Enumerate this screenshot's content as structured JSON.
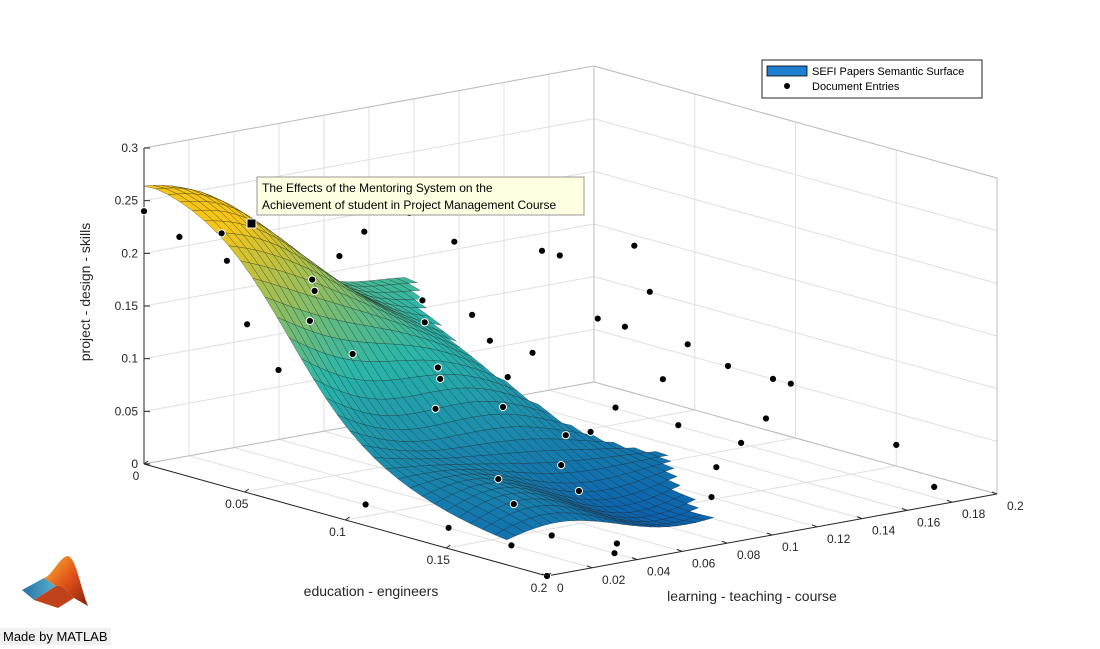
{
  "chart_data": {
    "type": "scatter",
    "subtype": "3d-surface-with-points",
    "title": "",
    "xlabel": "learning - teaching - course",
    "ylabel": "education - engineers",
    "zlabel": "project - design - skills",
    "xlim": [
      0,
      0.2
    ],
    "ylim": [
      0,
      0.2
    ],
    "zlim": [
      0,
      0.3
    ],
    "x_ticks": [
      "0",
      "0.02",
      "0.04",
      "0.06",
      "0.08",
      "0.1",
      "0.12",
      "0.14",
      "0.16",
      "0.18",
      "0.2"
    ],
    "y_ticks": [
      "0",
      "0.05",
      "0.1",
      "0.15",
      "0.2"
    ],
    "z_ticks": [
      "0",
      "0.05",
      "0.1",
      "0.15",
      "0.2",
      "0.25",
      "0.3"
    ],
    "grid": true,
    "colormap": "parula",
    "legend": {
      "location": "top-right",
      "entries": [
        "SEFI Papers Semantic Surface",
        "Document Entries"
      ]
    },
    "series": [
      {
        "name": "Document Entries",
        "points": [
          [
            0.0,
            0.0,
            0.24
          ],
          [
            0.005,
            0.012,
            0.22
          ],
          [
            0.01,
            0.03,
            0.205
          ],
          [
            0.03,
            0.005,
            0.21
          ],
          [
            0.03,
            0.05,
            0.19
          ],
          [
            0.02,
            0.06,
            0.16
          ],
          [
            0.04,
            0.04,
            0.17
          ],
          [
            0.06,
            0.03,
            0.19
          ],
          [
            0.08,
            0.02,
            0.2
          ],
          [
            0.1,
            0.02,
            0.21
          ],
          [
            0.12,
            0.02,
            0.175
          ],
          [
            0.14,
            0.05,
            0.17
          ],
          [
            0.01,
            0.04,
            0.15
          ],
          [
            0.03,
            0.07,
            0.13
          ],
          [
            0.015,
            0.05,
            0.11
          ],
          [
            0.05,
            0.09,
            0.12
          ],
          [
            0.07,
            0.06,
            0.16
          ],
          [
            0.1,
            0.06,
            0.11
          ],
          [
            0.13,
            0.08,
            0.13
          ],
          [
            0.16,
            0.06,
            0.1
          ],
          [
            0.2,
            0.02,
            0.14
          ],
          [
            0.17,
            0.1,
            0.08
          ],
          [
            0.18,
            0.12,
            0.07
          ],
          [
            0.2,
            0.15,
            0.02
          ],
          [
            0.19,
            0.18,
            0.0
          ],
          [
            0.14,
            0.14,
            0.04
          ],
          [
            0.16,
            0.13,
            0.05
          ],
          [
            0.12,
            0.1,
            0.06
          ],
          [
            0.1,
            0.11,
            0.05
          ],
          [
            0.08,
            0.12,
            0.06
          ],
          [
            0.06,
            0.14,
            0.05
          ],
          [
            0.05,
            0.16,
            0.04
          ],
          [
            0.04,
            0.19,
            0.01
          ],
          [
            0.03,
            0.2,
            0.01
          ],
          [
            0.02,
            0.18,
            0.02
          ],
          [
            0.05,
            0.12,
            0.03
          ],
          [
            0.07,
            0.1,
            0.08
          ],
          [
            0.09,
            0.08,
            0.09
          ],
          [
            0.11,
            0.07,
            0.1
          ],
          [
            0.15,
            0.09,
            0.07
          ],
          [
            0.13,
            0.12,
            0.05
          ],
          [
            0.0,
            0.11,
            0.02
          ],
          [
            0.01,
            0.14,
            0.01
          ],
          [
            0.02,
            0.16,
            0.0
          ],
          [
            0.0,
            0.2,
            0.0
          ],
          [
            0.03,
            0.15,
            0.03
          ],
          [
            0.06,
            0.08,
            0.1
          ],
          [
            0.08,
            0.05,
            0.13
          ],
          [
            0.04,
            0.1,
            0.09
          ],
          [
            0.11,
            0.04,
            0.12
          ],
          [
            0.18,
            0.05,
            0.12
          ],
          [
            0.15,
            0.03,
            0.16
          ],
          [
            0.17,
            0.08,
            0.09
          ],
          [
            0.19,
            0.1,
            0.06
          ],
          [
            0.12,
            0.15,
            0.03
          ],
          [
            0.1,
            0.17,
            0.02
          ]
        ]
      }
    ],
    "datatip": {
      "line1": "The Effects of the Mentoring System on the",
      "line2": "Achievement of student in Project Management Course"
    }
  },
  "colors": {
    "surface_low": "#0a5fb0",
    "surface_mid": "#2ab7a9",
    "surface_high": "#f5c518",
    "edge": "#1a1a1a",
    "grid": "#e0e0e0",
    "axis": "#262626",
    "legend_patch": "#1f7fd0",
    "tip_bg": "#ffffe1"
  },
  "footer": {
    "text": "Made by MATLAB",
    "logo_icon": "matlab-membrane-logo"
  }
}
